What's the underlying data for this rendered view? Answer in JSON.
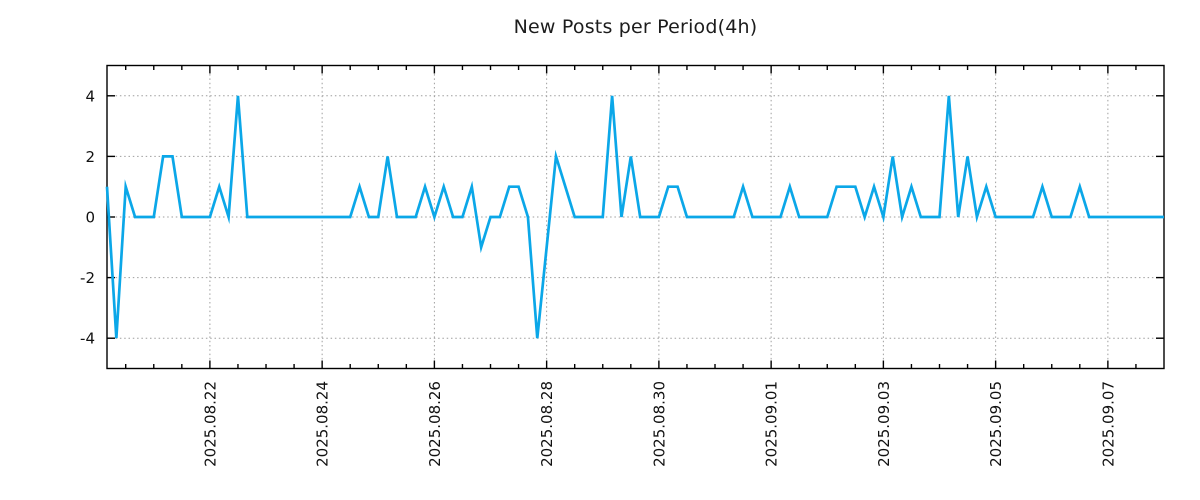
{
  "chart_data": {
    "type": "line",
    "title": "New Posts per Period(4h)",
    "xlabel": "",
    "ylabel": "",
    "period": "4h",
    "ylim": [
      -5,
      5
    ],
    "y_ticks": [
      -4,
      -2,
      0,
      2,
      4
    ],
    "grid": true,
    "legend": "none",
    "x_axis": {
      "total_hours": 452,
      "first_tick_hour": 8,
      "minor_tick_step_hours": 12,
      "major_tick_hours": [
        44,
        92,
        140,
        188,
        236,
        284,
        332,
        380,
        428
      ],
      "tick_labels": [
        "2025.08.22",
        "2025.08.24",
        "2025.08.26",
        "2025.08.28",
        "2025.08.30",
        "2025.09.01",
        "2025.09.03",
        "2025.09.05",
        "2025.09.07"
      ],
      "tick_label_rotation_deg": -90
    },
    "series": [
      {
        "name": "new-posts",
        "color": "#0ba7e8",
        "step_hours": 4,
        "values": [
          1,
          -4,
          1,
          0,
          0,
          0,
          2,
          2,
          0,
          0,
          0,
          0,
          1,
          0,
          4,
          0,
          0,
          0,
          0,
          0,
          0,
          0,
          0,
          0,
          0,
          0,
          0,
          1,
          0,
          0,
          2,
          0,
          0,
          0,
          1,
          0,
          1,
          0,
          0,
          1,
          -1,
          0,
          0,
          1,
          1,
          0,
          -4,
          -1,
          2,
          1,
          0,
          0,
          0,
          0,
          4,
          0,
          2,
          0,
          0,
          0,
          1,
          1,
          0,
          0,
          0,
          0,
          0,
          0,
          1,
          0,
          0,
          0,
          0,
          1,
          0,
          0,
          0,
          0,
          1,
          1,
          1,
          0,
          1,
          0,
          2,
          0,
          1,
          0,
          0,
          0,
          4,
          0,
          2,
          0,
          1,
          0,
          0,
          0,
          0,
          0,
          1,
          0,
          0,
          0,
          1,
          0,
          0,
          0,
          0,
          0,
          0,
          0,
          0,
          0
        ]
      }
    ],
    "colors": {
      "line": "#0ba7e8",
      "grid": "#9e9e9e",
      "axis": "#000000",
      "text": "#111111",
      "title": "#1c1c1c",
      "background": "#ffffff"
    }
  }
}
